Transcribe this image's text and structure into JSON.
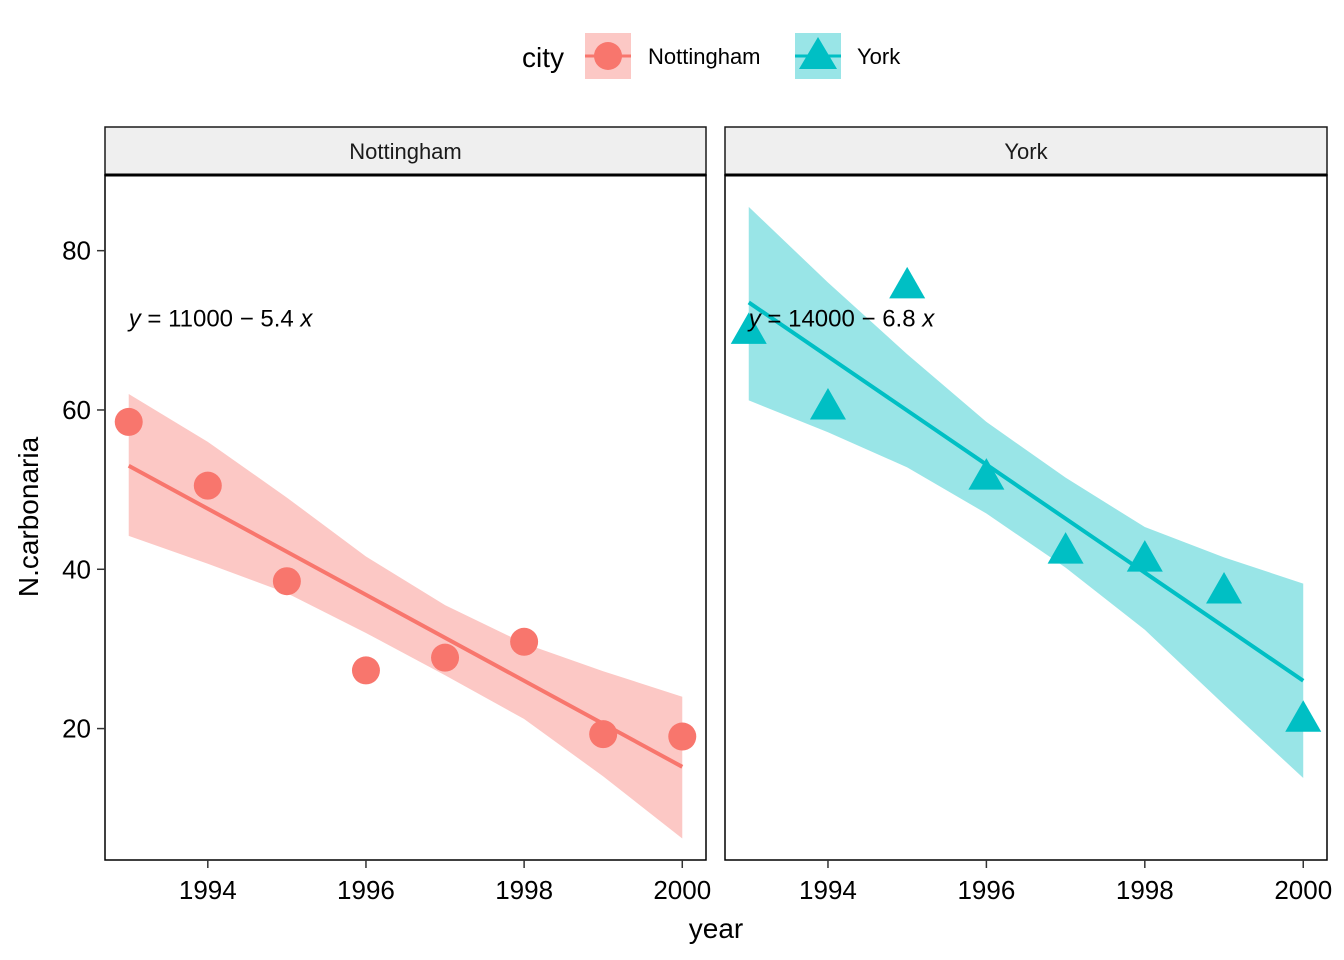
{
  "chart_data": {
    "type": "scatter",
    "xlabel": "year",
    "ylabel": "N.carbonaria",
    "xlim": [
      1992.7,
      2000.3
    ],
    "ylim": [
      3.5,
      89.5
    ],
    "x_ticks": [
      1994,
      1996,
      1998,
      2000
    ],
    "y_ticks": [
      20,
      40,
      60,
      80
    ],
    "grid": false,
    "legend": {
      "title": "city",
      "position": "top",
      "entries": [
        {
          "label": "Nottingham",
          "shape": "circle",
          "color": "#F8766D"
        },
        {
          "label": "York",
          "shape": "triangle",
          "color": "#00BFC4"
        }
      ]
    },
    "facets": [
      {
        "label": "Nottingham",
        "color": "#F8766D",
        "band_color": "#F8766D",
        "shape": "circle",
        "equation": {
          "lhs": "y",
          "rhs_text": " = 11000 − 5.4 ",
          "var": "x",
          "x": 1993,
          "y": 71.5
        },
        "x": [
          1993,
          1994,
          1995,
          1996,
          1997,
          1998,
          1999,
          2000
        ],
        "y": [
          58.5,
          50.5,
          38.5,
          27.3,
          28.9,
          30.9,
          19.3,
          19.0
        ],
        "fit": {
          "x": [
            1993,
            2000
          ],
          "y": [
            53.0,
            15.2
          ]
        },
        "ci": {
          "x": [
            1993,
            1994,
            1995,
            1996,
            1997,
            1998,
            1999,
            2000
          ],
          "lower": [
            44.2,
            40.7,
            37.0,
            32.0,
            26.7,
            21.2,
            14.0,
            6.2
          ],
          "upper": [
            62.0,
            56.0,
            49.0,
            41.6,
            35.5,
            30.7,
            27.2,
            24.0
          ]
        }
      },
      {
        "label": "York",
        "color": "#00BFC4",
        "band_color": "#00BFC4",
        "shape": "triangle",
        "equation": {
          "lhs": "y",
          "rhs_text": " = 14000 − 6.8 ",
          "var": "x",
          "x": 1993,
          "y": 71.5
        },
        "x": [
          1993,
          1994,
          1995,
          1996,
          1997,
          1998,
          1999,
          2000
        ],
        "y": [
          70.0,
          60.5,
          75.7,
          51.7,
          42.4,
          41.4,
          37.4,
          21.3
        ],
        "fit": {
          "x": [
            1993,
            2000
          ],
          "y": [
            73.5,
            26.0
          ]
        },
        "ci": {
          "x": [
            1993,
            1994,
            1995,
            1996,
            1997,
            1998,
            1999,
            2000
          ],
          "lower": [
            61.2,
            57.2,
            52.8,
            47.0,
            40.2,
            32.4,
            23.0,
            13.8
          ],
          "upper": [
            85.5,
            76.0,
            67.0,
            58.5,
            51.5,
            45.3,
            41.5,
            38.2
          ]
        }
      }
    ]
  }
}
